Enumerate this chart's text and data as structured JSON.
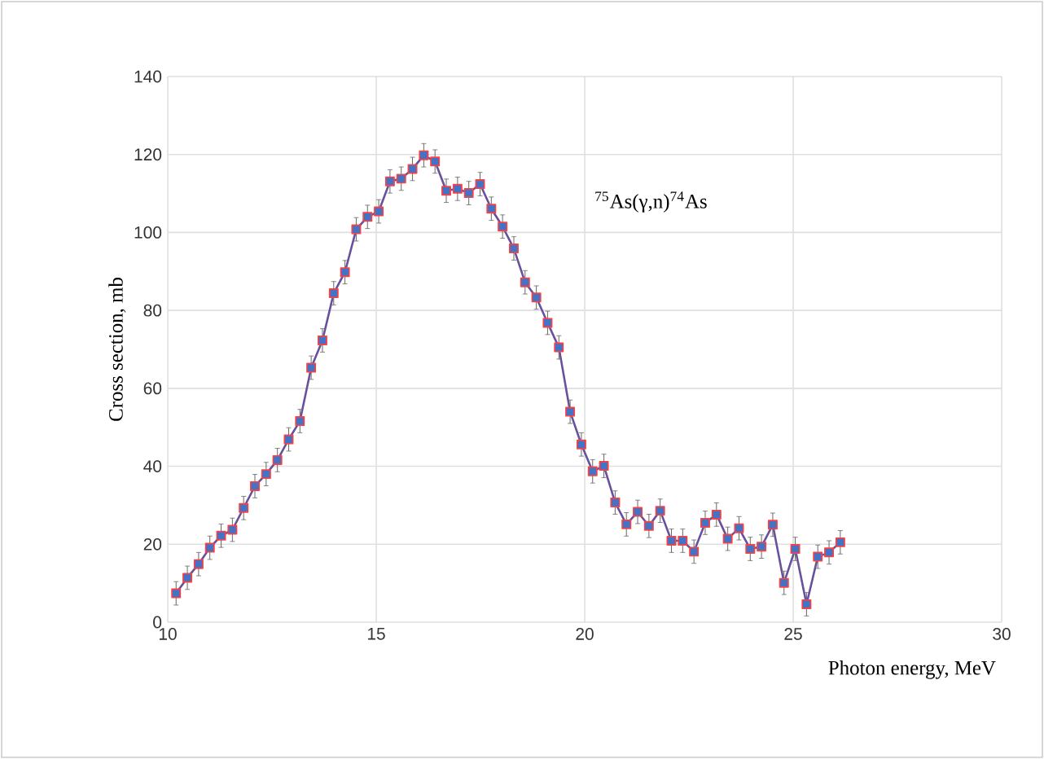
{
  "chart_data": {
    "type": "line",
    "xlabel": "Photon energy, MeV",
    "ylabel": "Cross section, mb",
    "annotations": [
      "$^{75}$As(γ,n)$^{74}$As"
    ],
    "x": [
      10.2,
      10.47,
      10.74,
      11.01,
      11.28,
      11.55,
      11.82,
      12.09,
      12.36,
      12.63,
      12.9,
      13.17,
      13.44,
      13.71,
      13.98,
      14.25,
      14.52,
      14.79,
      15.06,
      15.33,
      15.6,
      15.87,
      16.14,
      16.41,
      16.68,
      16.95,
      17.22,
      17.49,
      17.76,
      18.03,
      18.3,
      18.57,
      18.84,
      19.11,
      19.38,
      19.65,
      19.92,
      20.19,
      20.46,
      20.73,
      21.0,
      21.27,
      21.54,
      21.81,
      22.08,
      22.35,
      22.62,
      22.89,
      23.16,
      23.43,
      23.7,
      23.97,
      24.24,
      24.51,
      24.78,
      25.05,
      25.32,
      25.59,
      25.86,
      26.13
    ],
    "values": [
      7.4,
      11.4,
      14.9,
      19.1,
      22.2,
      23.7,
      29.3,
      34.9,
      38.0,
      41.6,
      46.9,
      51.6,
      65.3,
      72.3,
      84.4,
      89.8,
      100.8,
      104.0,
      105.4,
      113.1,
      113.8,
      116.3,
      119.8,
      118.2,
      110.7,
      111.2,
      110.1,
      112.4,
      106.1,
      101.5,
      95.9,
      87.2,
      83.3,
      76.8,
      70.5,
      54.0,
      45.6,
      38.7,
      40.1,
      30.7,
      25.1,
      28.3,
      24.7,
      28.6,
      20.9,
      20.9,
      18.1,
      25.5,
      27.6,
      21.4,
      24.1,
      18.8,
      19.4,
      25.0,
      10.1,
      18.8,
      4.6,
      16.8,
      17.9,
      20.5
    ],
    "errors": [
      3,
      3,
      3,
      3,
      3,
      3,
      3,
      3,
      3,
      3,
      3,
      3,
      3,
      3,
      3,
      3,
      3,
      3,
      3,
      3,
      3,
      3,
      3,
      3,
      3,
      3,
      3,
      3,
      3,
      3,
      3,
      3,
      3,
      3,
      3,
      3,
      3,
      3,
      3,
      3,
      3,
      3,
      3,
      3,
      3,
      3,
      3,
      3,
      3,
      3,
      3,
      3,
      3,
      3,
      3,
      3,
      3,
      3,
      3,
      3
    ],
    "color": "#4472c4",
    "xlim": [
      10,
      30
    ],
    "xticks": [
      10,
      15,
      20,
      25,
      30
    ],
    "ylim": [
      0,
      140
    ],
    "yticks": [
      0,
      20,
      40,
      60,
      80,
      100,
      120,
      140
    ],
    "grid": true,
    "marker": "square",
    "line_style": "solid"
  }
}
